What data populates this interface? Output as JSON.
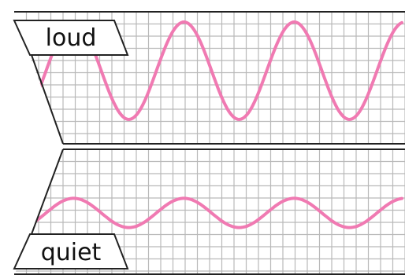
{
  "panels": [
    {
      "label": "loud",
      "wave": {
        "cycles": 3.5,
        "relative_amplitude": 1.0
      }
    },
    {
      "label": "quiet",
      "wave": {
        "cycles": 3.5,
        "relative_amplitude": 0.3
      }
    }
  ],
  "colors": {
    "wave": "#f07ab2",
    "grid": "#b9b9b9",
    "frame": "#222222",
    "background": "#ffffff"
  }
}
